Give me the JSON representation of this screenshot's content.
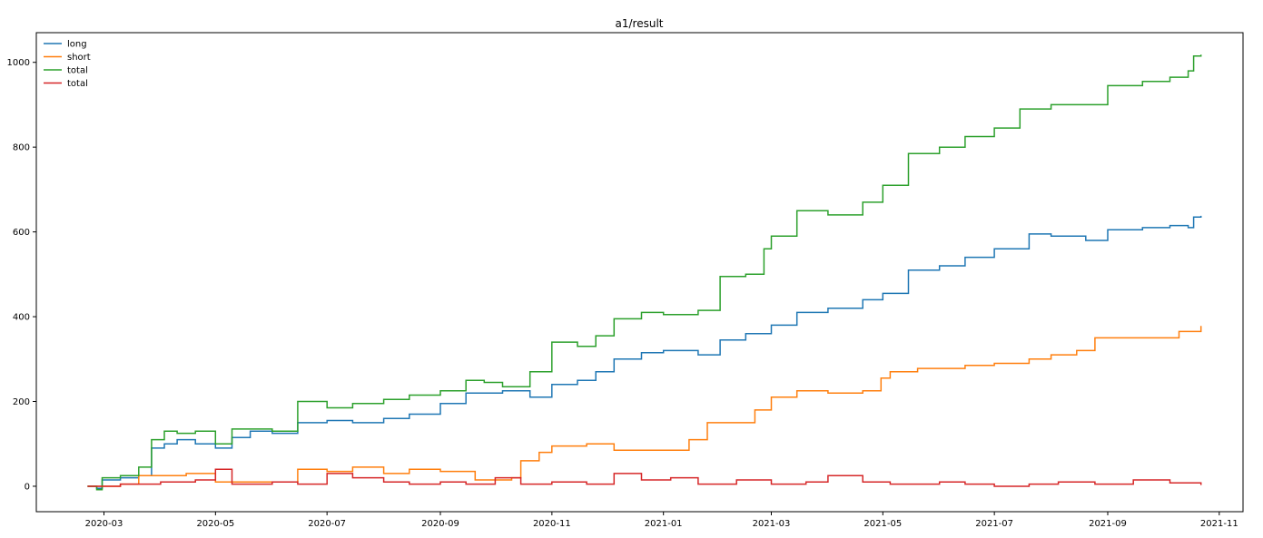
{
  "chart_data": {
    "type": "line",
    "title": "a1/result",
    "xlabel": "",
    "ylabel": "",
    "x_axis_type": "date",
    "xlim": [
      "2020-01-24",
      "2021-11-14"
    ],
    "ylim": [
      -60,
      1070
    ],
    "x_ticks": [
      "2020-03-01",
      "2020-05-01",
      "2020-07-01",
      "2020-09-01",
      "2020-11-01",
      "2021-01-01",
      "2021-03-01",
      "2021-05-01",
      "2021-07-01",
      "2021-09-01",
      "2021-11-01"
    ],
    "x_tick_labels": [
      "2020-03",
      "2020-05",
      "2020-07",
      "2020-09",
      "2020-11",
      "2021-01",
      "2021-03",
      "2021-05",
      "2021-07",
      "2021-09",
      "2021-11"
    ],
    "y_ticks": [
      0,
      200,
      400,
      600,
      800,
      1000
    ],
    "y_tick_labels": [
      "0",
      "200",
      "400",
      "600",
      "800",
      "1000"
    ],
    "grid": false,
    "legend": "top-left",
    "draw_style": "steps",
    "series": [
      {
        "name": "long",
        "color": "#1f77b4",
        "points": [
          [
            "2020-02-21",
            0
          ],
          [
            "2020-02-26",
            -5
          ],
          [
            "2020-02-29",
            15
          ],
          [
            "2020-03-10",
            20
          ],
          [
            "2020-03-20",
            25
          ],
          [
            "2020-03-27",
            90
          ],
          [
            "2020-04-03",
            100
          ],
          [
            "2020-04-10",
            110
          ],
          [
            "2020-04-20",
            100
          ],
          [
            "2020-05-01",
            90
          ],
          [
            "2020-05-10",
            115
          ],
          [
            "2020-05-20",
            130
          ],
          [
            "2020-06-01",
            125
          ],
          [
            "2020-06-15",
            150
          ],
          [
            "2020-07-01",
            155
          ],
          [
            "2020-07-15",
            150
          ],
          [
            "2020-08-01",
            160
          ],
          [
            "2020-08-15",
            170
          ],
          [
            "2020-09-01",
            195
          ],
          [
            "2020-09-15",
            220
          ],
          [
            "2020-09-25",
            220
          ],
          [
            "2020-10-05",
            225
          ],
          [
            "2020-10-20",
            210
          ],
          [
            "2020-11-01",
            240
          ],
          [
            "2020-11-15",
            250
          ],
          [
            "2020-11-25",
            270
          ],
          [
            "2020-12-05",
            300
          ],
          [
            "2020-12-20",
            315
          ],
          [
            "2021-01-01",
            320
          ],
          [
            "2021-01-20",
            310
          ],
          [
            "2021-02-01",
            345
          ],
          [
            "2021-02-15",
            360
          ],
          [
            "2021-03-01",
            380
          ],
          [
            "2021-03-15",
            410
          ],
          [
            "2021-04-01",
            420
          ],
          [
            "2021-04-20",
            440
          ],
          [
            "2021-05-01",
            455
          ],
          [
            "2021-05-15",
            510
          ],
          [
            "2021-06-01",
            520
          ],
          [
            "2021-06-15",
            540
          ],
          [
            "2021-07-01",
            560
          ],
          [
            "2021-07-20",
            595
          ],
          [
            "2021-08-01",
            590
          ],
          [
            "2021-08-20",
            580
          ],
          [
            "2021-09-01",
            605
          ],
          [
            "2021-09-20",
            610
          ],
          [
            "2021-10-05",
            615
          ],
          [
            "2021-10-15",
            610
          ],
          [
            "2021-10-18",
            635
          ],
          [
            "2021-10-22",
            638
          ]
        ]
      },
      {
        "name": "short",
        "color": "#ff7f0e",
        "points": [
          [
            "2020-02-21",
            0
          ],
          [
            "2020-03-10",
            5
          ],
          [
            "2020-03-20",
            25
          ],
          [
            "2020-04-15",
            30
          ],
          [
            "2020-05-01",
            10
          ],
          [
            "2020-06-01",
            10
          ],
          [
            "2020-06-15",
            40
          ],
          [
            "2020-07-01",
            35
          ],
          [
            "2020-07-15",
            45
          ],
          [
            "2020-08-01",
            30
          ],
          [
            "2020-08-15",
            40
          ],
          [
            "2020-09-01",
            35
          ],
          [
            "2020-09-20",
            15
          ],
          [
            "2020-10-10",
            20
          ],
          [
            "2020-10-15",
            60
          ],
          [
            "2020-10-25",
            80
          ],
          [
            "2020-11-01",
            95
          ],
          [
            "2020-11-20",
            100
          ],
          [
            "2020-12-05",
            85
          ],
          [
            "2021-01-01",
            85
          ],
          [
            "2021-01-15",
            110
          ],
          [
            "2021-01-25",
            150
          ],
          [
            "2021-02-10",
            150
          ],
          [
            "2021-02-20",
            180
          ],
          [
            "2021-03-01",
            210
          ],
          [
            "2021-03-15",
            225
          ],
          [
            "2021-04-01",
            220
          ],
          [
            "2021-04-20",
            225
          ],
          [
            "2021-04-30",
            255
          ],
          [
            "2021-05-05",
            270
          ],
          [
            "2021-05-20",
            278
          ],
          [
            "2021-06-15",
            285
          ],
          [
            "2021-07-01",
            290
          ],
          [
            "2021-07-20",
            300
          ],
          [
            "2021-08-01",
            310
          ],
          [
            "2021-08-15",
            320
          ],
          [
            "2021-08-25",
            350
          ],
          [
            "2021-09-15",
            350
          ],
          [
            "2021-10-01",
            350
          ],
          [
            "2021-10-10",
            365
          ],
          [
            "2021-10-22",
            378
          ]
        ]
      },
      {
        "name": "total",
        "color": "#2ca02c",
        "points": [
          [
            "2020-02-21",
            0
          ],
          [
            "2020-02-26",
            -8
          ],
          [
            "2020-02-29",
            20
          ],
          [
            "2020-03-10",
            25
          ],
          [
            "2020-03-20",
            45
          ],
          [
            "2020-03-27",
            110
          ],
          [
            "2020-04-03",
            130
          ],
          [
            "2020-04-10",
            125
          ],
          [
            "2020-04-20",
            130
          ],
          [
            "2020-05-01",
            100
          ],
          [
            "2020-05-10",
            135
          ],
          [
            "2020-06-01",
            130
          ],
          [
            "2020-06-15",
            200
          ],
          [
            "2020-07-01",
            185
          ],
          [
            "2020-07-15",
            195
          ],
          [
            "2020-08-01",
            205
          ],
          [
            "2020-08-15",
            215
          ],
          [
            "2020-09-01",
            225
          ],
          [
            "2020-09-15",
            250
          ],
          [
            "2020-09-25",
            245
          ],
          [
            "2020-10-05",
            235
          ],
          [
            "2020-10-20",
            270
          ],
          [
            "2020-11-01",
            340
          ],
          [
            "2020-11-15",
            330
          ],
          [
            "2020-11-25",
            355
          ],
          [
            "2020-12-05",
            395
          ],
          [
            "2020-12-20",
            410
          ],
          [
            "2021-01-01",
            405
          ],
          [
            "2021-01-20",
            415
          ],
          [
            "2021-02-01",
            495
          ],
          [
            "2021-02-15",
            500
          ],
          [
            "2021-02-25",
            560
          ],
          [
            "2021-03-01",
            590
          ],
          [
            "2021-03-15",
            650
          ],
          [
            "2021-04-01",
            640
          ],
          [
            "2021-04-20",
            670
          ],
          [
            "2021-05-01",
            710
          ],
          [
            "2021-05-15",
            785
          ],
          [
            "2021-06-01",
            800
          ],
          [
            "2021-06-15",
            825
          ],
          [
            "2021-07-01",
            845
          ],
          [
            "2021-07-15",
            890
          ],
          [
            "2021-08-01",
            900
          ],
          [
            "2021-08-20",
            900
          ],
          [
            "2021-09-01",
            945
          ],
          [
            "2021-09-20",
            955
          ],
          [
            "2021-10-05",
            965
          ],
          [
            "2021-10-15",
            980
          ],
          [
            "2021-10-18",
            1015
          ],
          [
            "2021-10-22",
            1018
          ]
        ]
      },
      {
        "name": "total",
        "color": "#d62728",
        "points": [
          [
            "2020-02-21",
            0
          ],
          [
            "2020-03-10",
            5
          ],
          [
            "2020-04-01",
            10
          ],
          [
            "2020-04-20",
            15
          ],
          [
            "2020-05-01",
            40
          ],
          [
            "2020-05-10",
            5
          ],
          [
            "2020-06-01",
            10
          ],
          [
            "2020-06-15",
            5
          ],
          [
            "2020-07-01",
            30
          ],
          [
            "2020-07-15",
            20
          ],
          [
            "2020-08-01",
            10
          ],
          [
            "2020-08-15",
            5
          ],
          [
            "2020-09-01",
            10
          ],
          [
            "2020-09-15",
            5
          ],
          [
            "2020-10-01",
            20
          ],
          [
            "2020-10-15",
            5
          ],
          [
            "2020-11-01",
            10
          ],
          [
            "2020-11-20",
            5
          ],
          [
            "2020-12-05",
            30
          ],
          [
            "2020-12-20",
            15
          ],
          [
            "2021-01-05",
            20
          ],
          [
            "2021-01-20",
            5
          ],
          [
            "2021-02-10",
            15
          ],
          [
            "2021-03-01",
            5
          ],
          [
            "2021-03-20",
            10
          ],
          [
            "2021-04-01",
            25
          ],
          [
            "2021-04-20",
            10
          ],
          [
            "2021-05-05",
            5
          ],
          [
            "2021-06-01",
            10
          ],
          [
            "2021-06-15",
            5
          ],
          [
            "2021-07-01",
            0
          ],
          [
            "2021-07-20",
            5
          ],
          [
            "2021-08-05",
            10
          ],
          [
            "2021-08-25",
            5
          ],
          [
            "2021-09-15",
            15
          ],
          [
            "2021-10-05",
            8
          ],
          [
            "2021-10-22",
            3
          ]
        ]
      }
    ]
  }
}
